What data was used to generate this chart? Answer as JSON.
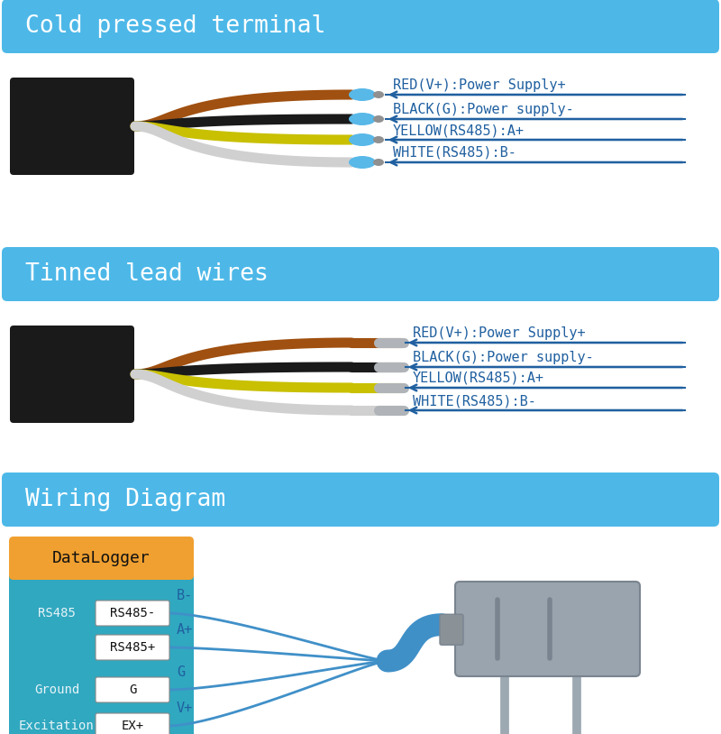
{
  "bg_color": "#ffffff",
  "header_color": "#4db8e8",
  "header_text_color": "#ffffff",
  "section1_title": "Cold pressed terminal",
  "section2_title": "Tinned lead wires",
  "section3_title": "Wiring Diagram",
  "wire_labels": [
    "RED(V+):Power Supply+",
    "BLACK(G):Power supply-",
    "YELLOW(RS485):A+",
    "WHITE(RS485):B-"
  ],
  "wire_colors_cp": [
    "#a05010",
    "#1a1a1a",
    "#c8c000",
    "#d0d0d0"
  ],
  "wire_colors_tl": [
    "#a05010",
    "#1a1a1a",
    "#c8c000",
    "#d0d0d0"
  ],
  "connector_color": "#58b8e8",
  "connector_tip": "#909090",
  "arrow_color": "#2060a0",
  "label_color": "#2060a0",
  "datalogger_bg": "#f0a030",
  "datalogger_text": "#111111",
  "datalogger_label": "DataLogger",
  "rs485_bg": "#30a8c0",
  "box_bg": "#ffffff",
  "wiring_labels": [
    "B-",
    "A+",
    "G",
    "V+"
  ],
  "wiring_boxes": [
    "RS485-",
    "RS485+",
    "G",
    "EX+"
  ],
  "wiring_side_labels": [
    "RS485",
    "",
    "Ground",
    "Excitation"
  ],
  "sensor_color": "#9aa4ae",
  "sensor_dark": "#7a8490",
  "cable_color": "#4090c8",
  "jacket_color": "#1a1a1a"
}
